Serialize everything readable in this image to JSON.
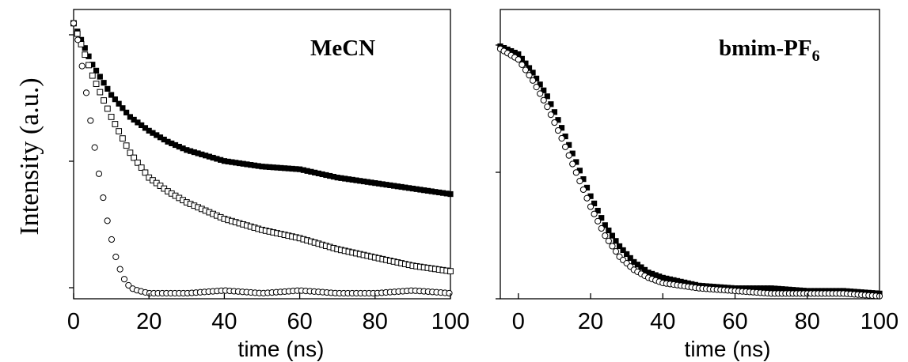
{
  "figure": {
    "y_axis_title": "Intensity (a.u.)"
  },
  "chart_data": [
    {
      "type": "scatter",
      "annotation": "MeCN",
      "xlabel": "time (ns)",
      "ylabel": "Intensity (a.u.)",
      "xlim": [
        0,
        100
      ],
      "ylim": [
        0,
        1.05
      ],
      "x_ticks": [
        0,
        20,
        40,
        60,
        80,
        100
      ],
      "y_tick_labels": "none",
      "grid": false,
      "series": [
        {
          "marker": "filled-square",
          "x": [
            0,
            5,
            10,
            15,
            20,
            25,
            30,
            40,
            50,
            60,
            70,
            80,
            90,
            100
          ],
          "y": [
            1.0,
            0.85,
            0.74,
            0.66,
            0.61,
            0.57,
            0.54,
            0.5,
            0.48,
            0.47,
            0.44,
            0.42,
            0.4,
            0.38
          ]
        },
        {
          "marker": "open-square",
          "x": [
            0,
            5,
            10,
            15,
            20,
            25,
            30,
            40,
            50,
            60,
            70,
            80,
            90,
            100
          ],
          "y": [
            1.0,
            0.81,
            0.66,
            0.53,
            0.44,
            0.39,
            0.35,
            0.29,
            0.25,
            0.22,
            0.18,
            0.15,
            0.12,
            0.1
          ]
        },
        {
          "marker": "open-circle",
          "x": [
            0,
            1,
            3,
            5,
            7,
            9,
            11,
            13,
            15,
            17,
            20,
            30,
            40,
            50,
            60,
            70,
            80,
            90,
            100
          ],
          "y": [
            1.0,
            0.95,
            0.78,
            0.6,
            0.43,
            0.28,
            0.16,
            0.08,
            0.04,
            0.03,
            0.02,
            0.02,
            0.03,
            0.02,
            0.03,
            0.02,
            0.02,
            0.03,
            0.02
          ]
        }
      ]
    },
    {
      "type": "scatter",
      "annotation": "bmim-PF",
      "annotation_subscript": "6",
      "xlabel": "time (ns)",
      "xlim": [
        -5,
        100
      ],
      "ylim": [
        0,
        1.1
      ],
      "x_ticks": [
        0,
        20,
        40,
        60,
        80,
        100
      ],
      "y_tick_labels": "none",
      "grid": false,
      "series": [
        {
          "marker": "filled-square",
          "x": [
            -5,
            0,
            4,
            8,
            12,
            16,
            20,
            24,
            28,
            32,
            36,
            40,
            50,
            60,
            70,
            80,
            90,
            100
          ],
          "y": [
            0.96,
            0.93,
            0.86,
            0.77,
            0.65,
            0.52,
            0.39,
            0.28,
            0.2,
            0.14,
            0.1,
            0.08,
            0.05,
            0.04,
            0.04,
            0.03,
            0.03,
            0.02
          ]
        },
        {
          "marker": "open-circle",
          "x": [
            -5,
            0,
            4,
            8,
            12,
            16,
            20,
            24,
            28,
            32,
            36,
            40,
            50,
            60,
            70,
            80,
            90,
            100
          ],
          "y": [
            0.95,
            0.91,
            0.83,
            0.73,
            0.61,
            0.48,
            0.35,
            0.24,
            0.16,
            0.11,
            0.08,
            0.06,
            0.04,
            0.03,
            0.02,
            0.02,
            0.02,
            0.01
          ]
        }
      ]
    }
  ]
}
